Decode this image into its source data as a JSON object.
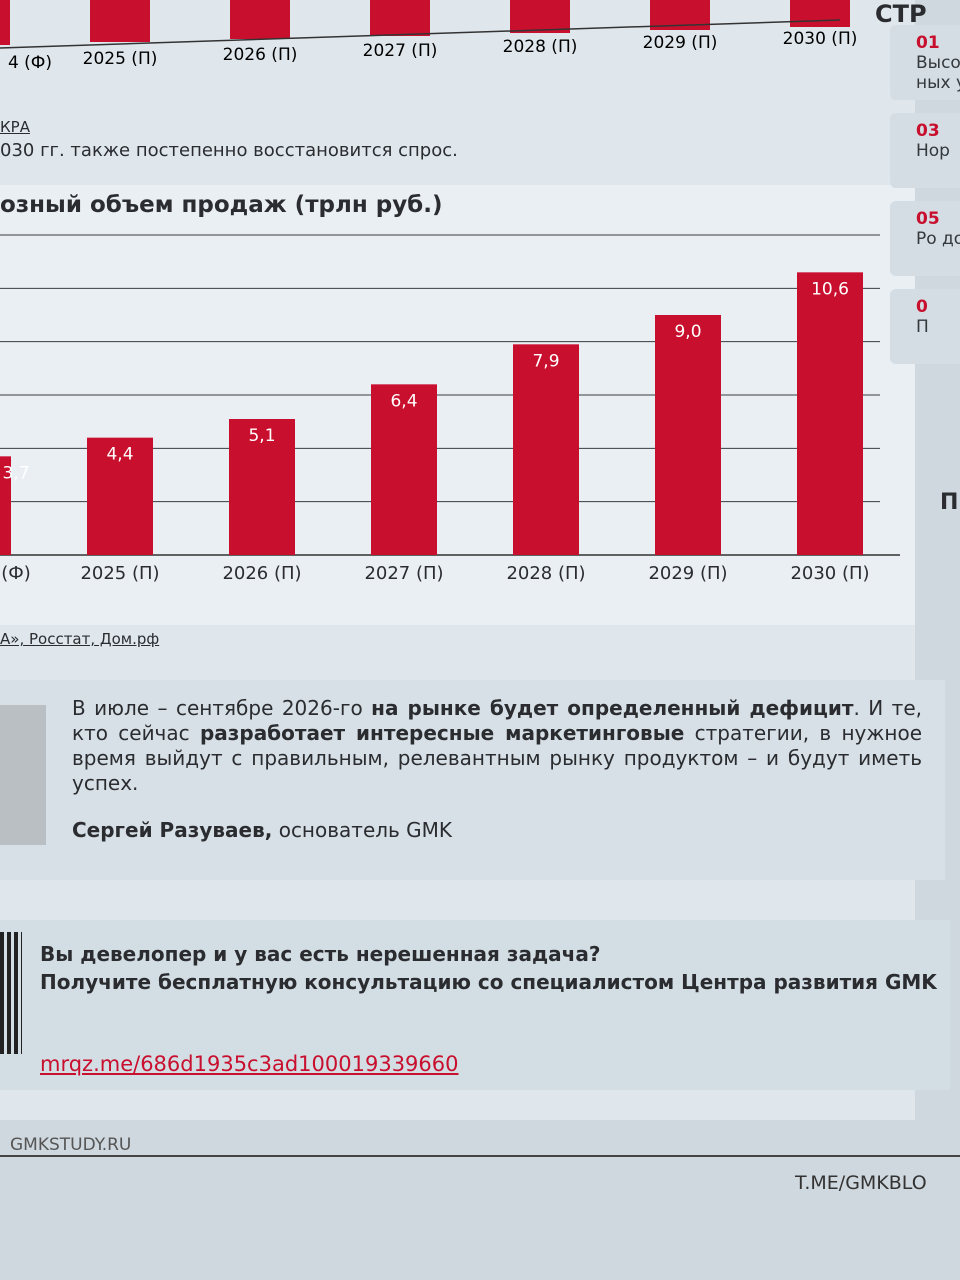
{
  "top_chart": {
    "categories": [
      "4 (Ф)",
      "2025 (П)",
      "2026 (П)",
      "2027 (П)",
      "2028 (П)",
      "2029 (П)",
      "2030 (П)"
    ]
  },
  "top_source": "КРА",
  "intro": "030 гг. также постепенно восстановится спрос.",
  "chart_data": {
    "type": "bar",
    "title": "озный объем продаж (трлн руб.)",
    "categories": [
      "(Ф)",
      "2025 (П)",
      "2026 (П)",
      "2027 (П)",
      "2028 (П)",
      "2029 (П)",
      "2030 (П)"
    ],
    "values": [
      3.7,
      4.4,
      5.1,
      6.4,
      7.9,
      9.0,
      10.6
    ],
    "value_labels": [
      "3,7",
      "4,4",
      "5,1",
      "6,4",
      "7,9",
      "9,0",
      "10,6"
    ],
    "color": "#c8102e",
    "ylim": [
      0,
      12
    ],
    "grid": true
  },
  "source": "А», Росстат, Дом.рф",
  "quote": {
    "text_1": "В июле – сентябре 2026-го ",
    "bold_1": "на рынке будет определенный дефицит",
    "text_2": ". И те, кто сейчас ",
    "bold_2": "разработает интересные маркетинговые",
    "text_3": " стратегии, в нужное время выйдут с правильным, релевантным рынку продуктом – и будут иметь успех.",
    "author": "Сергей Разуваев,",
    "role": " основатель GMK"
  },
  "cta": {
    "question": "Вы девелопер и у вас есть нерешенная задача?",
    "offer": "Получите бесплатную консультацию со специалистом Центра развития GMK",
    "link": "mrqz.me/686d1935c3ad100019339660"
  },
  "footer": {
    "site": "GMKSTUDY.RU",
    "channel": "T.ME/GMKBLO"
  },
  "sidebar": {
    "header": "СТР",
    "items": [
      {
        "num": "01",
        "text": "Высо ных у"
      },
      {
        "num": "03",
        "text": "Нор"
      },
      {
        "num": "05",
        "text": "Ро до"
      },
      {
        "num": "0",
        "text": "П"
      }
    ],
    "footer_letter": "П"
  }
}
